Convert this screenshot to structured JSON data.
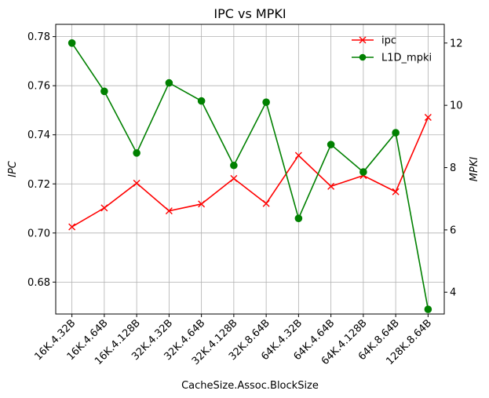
{
  "chart_data": {
    "type": "line",
    "title": "IPC vs MPKI",
    "xlabel": "CacheSize.Assoc.BlockSize",
    "ylabel_left": "IPC",
    "ylabel_right": "MPKI",
    "categories": [
      "16K.4.32B",
      "16K.4.64B",
      "16K.4.128B",
      "32K.4.32B",
      "32K.4.64B",
      "32K.4.128B",
      "32K.8.64B",
      "64K.4.32B",
      "64K.4.64B",
      "64K.4.128B",
      "64K.8.64B",
      "128K.8.64B"
    ],
    "ylim_left": [
      0.667,
      0.785
    ],
    "ylim_right": [
      3.3,
      12.6
    ],
    "yticks_left": [
      0.68,
      0.7,
      0.72,
      0.74,
      0.76,
      0.78
    ],
    "yticks_left_labels": [
      "0.68",
      "0.70",
      "0.72",
      "0.74",
      "0.76",
      "0.78"
    ],
    "yticks_right": [
      4,
      6,
      8,
      10,
      12
    ],
    "yticks_right_labels": [
      "4",
      "6",
      "8",
      "10",
      "12"
    ],
    "grid": true,
    "legend_position": "top-right",
    "series": [
      {
        "name": "ipc",
        "axis": "left",
        "color": "#ff0000",
        "marker": "x",
        "values": [
          0.7025,
          0.7102,
          0.7203,
          0.709,
          0.7118,
          0.7222,
          0.712,
          0.7316,
          0.719,
          0.7234,
          0.7168,
          0.7471
        ]
      },
      {
        "name": "L1D_mpki",
        "axis": "right",
        "color": "#008000",
        "marker": "o",
        "values": [
          12.0,
          10.45,
          8.47,
          10.72,
          10.14,
          8.07,
          10.1,
          6.37,
          8.74,
          7.86,
          9.12,
          3.45
        ]
      }
    ]
  }
}
